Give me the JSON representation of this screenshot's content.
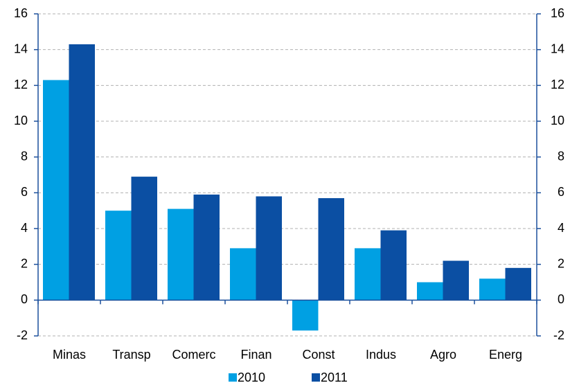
{
  "chart_data": {
    "type": "bar",
    "categories": [
      "Minas",
      "Transp",
      "Comerc",
      "Finan",
      "Const",
      "Indus",
      "Agro",
      "Energ"
    ],
    "series": [
      {
        "name": "2010",
        "color": "#00a0e3",
        "values": [
          12.3,
          5.0,
          5.1,
          2.9,
          -1.7,
          2.9,
          1.0,
          1.2
        ]
      },
      {
        "name": "2011",
        "color": "#0b4fa3",
        "values": [
          14.3,
          6.9,
          5.9,
          5.8,
          5.7,
          3.9,
          2.2,
          1.8
        ]
      }
    ],
    "ylim": [
      -2,
      16
    ],
    "yticks": [
      -2,
      0,
      2,
      4,
      6,
      8,
      10,
      12,
      14,
      16
    ],
    "y2lim": [
      -2,
      16
    ],
    "y2ticks": [
      -2,
      0,
      2,
      4,
      6,
      8,
      10,
      12,
      14,
      16
    ],
    "grid": true,
    "legend": "bottom"
  }
}
